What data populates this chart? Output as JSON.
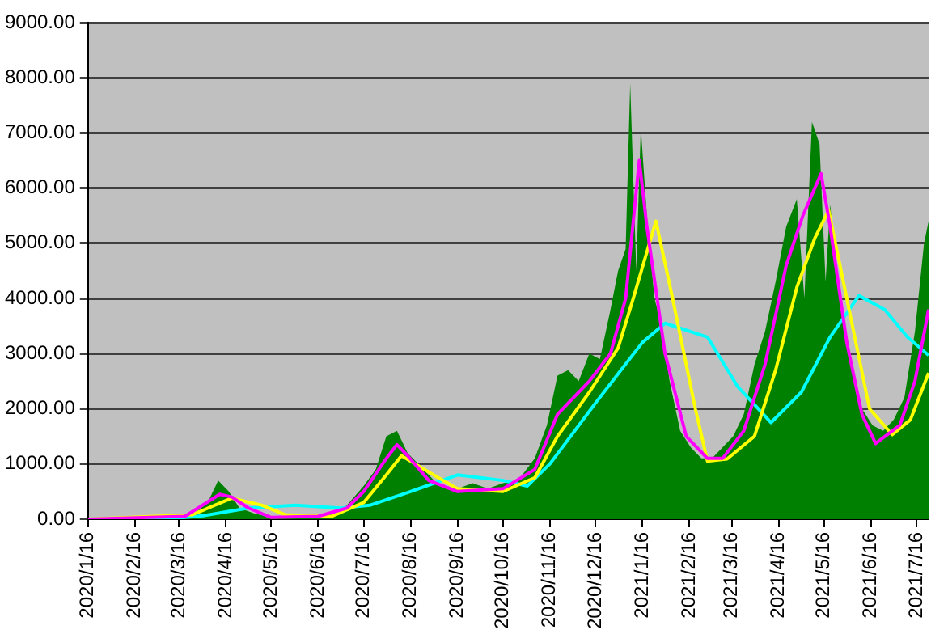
{
  "chart_data": {
    "type": "area",
    "legend": false,
    "grid": "y",
    "marker": "none",
    "xlim": [
      "2020-01-16",
      "2021-07-24"
    ],
    "xticks": [
      {
        "value": "2020-01-16",
        "label": "2020/1/16"
      },
      {
        "value": "2020-02-16",
        "label": "2020/2/16"
      },
      {
        "value": "2020-03-16",
        "label": "2020/3/16"
      },
      {
        "value": "2020-04-16",
        "label": "2020/4/16"
      },
      {
        "value": "2020-05-16",
        "label": "2020/5/16"
      },
      {
        "value": "2020-06-16",
        "label": "2020/6/16"
      },
      {
        "value": "2020-07-16",
        "label": "2020/7/16"
      },
      {
        "value": "2020-08-16",
        "label": "2020/8/16"
      },
      {
        "value": "2020-09-16",
        "label": "2020/9/16"
      },
      {
        "value": "2020-10-16",
        "label": "2020/10/16"
      },
      {
        "value": "2020-11-16",
        "label": "2020/11/16"
      },
      {
        "value": "2020-12-16",
        "label": "2020/12/16"
      },
      {
        "value": "2021-01-16",
        "label": "2021/1/16"
      },
      {
        "value": "2021-02-16",
        "label": "2021/2/16"
      },
      {
        "value": "2021-03-16",
        "label": "2021/3/16"
      },
      {
        "value": "2021-04-16",
        "label": "2021/4/16"
      },
      {
        "value": "2021-05-16",
        "label": "2021/5/16"
      },
      {
        "value": "2021-06-16",
        "label": "2021/6/16"
      },
      {
        "value": "2021-07-16",
        "label": "2021/7/16"
      }
    ],
    "ylim": [
      0,
      9000
    ],
    "yticks": [
      {
        "value": 0,
        "label": "0.00"
      },
      {
        "value": 1000,
        "label": "1000.00"
      },
      {
        "value": 2000,
        "label": "2000.00"
      },
      {
        "value": 3000,
        "label": "3000.00"
      },
      {
        "value": 4000,
        "label": "4000.00"
      },
      {
        "value": 5000,
        "label": "5000.00"
      },
      {
        "value": 6000,
        "label": "6000.00"
      },
      {
        "value": 7000,
        "label": "7000.00"
      },
      {
        "value": 8000,
        "label": "8000.00"
      },
      {
        "value": 9000,
        "label": "9000.00"
      }
    ],
    "series": [
      {
        "color": "#008000",
        "x": [
          "2020-01-16",
          "2020-02-16",
          "2020-03-01",
          "2020-03-16",
          "2020-03-26",
          "2020-04-04",
          "2020-04-11",
          "2020-04-18",
          "2020-04-25",
          "2020-05-05",
          "2020-05-16",
          "2020-06-01",
          "2020-06-16",
          "2020-06-28",
          "2020-07-05",
          "2020-07-16",
          "2020-07-24",
          "2020-07-31",
          "2020-08-07",
          "2020-08-14",
          "2020-08-21",
          "2020-08-28",
          "2020-09-04",
          "2020-09-16",
          "2020-09-26",
          "2020-10-06",
          "2020-10-16",
          "2020-10-26",
          "2020-11-06",
          "2020-11-14",
          "2020-11-21",
          "2020-11-28",
          "2020-12-05",
          "2020-12-12",
          "2020-12-19",
          "2020-12-26",
          "2020-12-31",
          "2021-01-05",
          "2021-01-08",
          "2021-01-12",
          "2021-01-15",
          "2021-01-19",
          "2021-01-24",
          "2021-01-29",
          "2021-02-03",
          "2021-02-10",
          "2021-02-17",
          "2021-02-24",
          "2021-03-03",
          "2021-03-10",
          "2021-03-17",
          "2021-03-24",
          "2021-03-31",
          "2021-04-07",
          "2021-04-14",
          "2021-04-21",
          "2021-04-28",
          "2021-05-03",
          "2021-05-08",
          "2021-05-13",
          "2021-05-17",
          "2021-05-20",
          "2021-05-27",
          "2021-06-03",
          "2021-06-10",
          "2021-06-17",
          "2021-06-24",
          "2021-07-01",
          "2021-07-08",
          "2021-07-15",
          "2021-07-21",
          "2021-07-24"
        ],
        "values": [
          0,
          10,
          20,
          20,
          100,
          300,
          700,
          500,
          200,
          100,
          30,
          40,
          60,
          100,
          250,
          600,
          900,
          1500,
          1600,
          1200,
          1000,
          800,
          600,
          550,
          650,
          550,
          650,
          700,
          1100,
          1700,
          2600,
          2700,
          2500,
          3000,
          2900,
          3800,
          4500,
          4900,
          7900,
          4500,
          7100,
          5500,
          4000,
          3500,
          2500,
          1600,
          1300,
          1100,
          1100,
          1300,
          1500,
          1900,
          2800,
          3400,
          4300,
          5300,
          5800,
          4000,
          7200,
          6800,
          4300,
          5700,
          3900,
          2900,
          2000,
          1700,
          1600,
          1800,
          2200,
          3400,
          5000,
          5400
        ]
      },
      {
        "type": "line",
        "color": "#ff00ff",
        "x": [
          "2020-01-16",
          "2020-03-20",
          "2020-04-12",
          "2020-04-20",
          "2020-05-01",
          "2020-05-16",
          "2020-06-16",
          "2020-07-05",
          "2020-07-16",
          "2020-07-31",
          "2020-08-07",
          "2020-08-14",
          "2020-08-28",
          "2020-09-16",
          "2020-10-16",
          "2020-11-06",
          "2020-11-21",
          "2020-12-12",
          "2020-12-26",
          "2021-01-05",
          "2021-01-14",
          "2021-01-19",
          "2021-01-31",
          "2021-02-14",
          "2021-02-28",
          "2021-03-10",
          "2021-03-24",
          "2021-04-07",
          "2021-04-21",
          "2021-05-02",
          "2021-05-14",
          "2021-05-20",
          "2021-05-31",
          "2021-06-10",
          "2021-06-19",
          "2021-07-05",
          "2021-07-15",
          "2021-07-24"
        ],
        "values": [
          0,
          50,
          450,
          400,
          200,
          30,
          50,
          200,
          500,
          1100,
          1350,
          1150,
          700,
          500,
          550,
          900,
          1900,
          2500,
          3000,
          4000,
          6500,
          5300,
          3000,
          1500,
          1100,
          1100,
          1600,
          2800,
          4600,
          5500,
          6260,
          5300,
          3200,
          1900,
          1370,
          1700,
          2500,
          3800
        ]
      },
      {
        "type": "line",
        "color": "#ffff00",
        "x": [
          "2020-01-16",
          "2020-03-25",
          "2020-04-20",
          "2020-05-10",
          "2020-05-25",
          "2020-06-25",
          "2020-07-16",
          "2020-07-31",
          "2020-08-10",
          "2020-08-25",
          "2020-09-16",
          "2020-10-16",
          "2020-11-06",
          "2020-11-21",
          "2020-12-12",
          "2020-12-31",
          "2021-01-10",
          "2021-01-25",
          "2021-02-05",
          "2021-02-20",
          "2021-02-28",
          "2021-03-13",
          "2021-03-31",
          "2021-04-14",
          "2021-04-28",
          "2021-05-10",
          "2021-05-19",
          "2021-05-31",
          "2021-06-15",
          "2021-06-30",
          "2021-07-12",
          "2021-07-24"
        ],
        "values": [
          0,
          80,
          380,
          250,
          80,
          50,
          300,
          800,
          1150,
          900,
          550,
          500,
          750,
          1500,
          2300,
          3100,
          4000,
          5400,
          4000,
          2000,
          1050,
          1090,
          1500,
          2700,
          4200,
          5100,
          5600,
          4000,
          2000,
          1530,
          1800,
          2650
        ]
      },
      {
        "type": "line",
        "color": "#00ffff",
        "x": [
          "2020-01-16",
          "2020-03-16",
          "2020-04-01",
          "2020-05-01",
          "2020-06-01",
          "2020-07-01",
          "2020-07-20",
          "2020-08-16",
          "2020-09-16",
          "2020-10-16",
          "2020-11-01",
          "2020-11-16",
          "2020-12-16",
          "2021-01-16",
          "2021-01-31",
          "2021-02-28",
          "2021-03-20",
          "2021-04-11",
          "2021-05-01",
          "2021-05-20",
          "2021-06-08",
          "2021-06-25",
          "2021-07-10",
          "2021-07-24"
        ],
        "values": [
          0,
          20,
          60,
          200,
          250,
          200,
          250,
          500,
          800,
          700,
          600,
          1000,
          2100,
          3200,
          3550,
          3300,
          2400,
          1750,
          2300,
          3300,
          4050,
          3800,
          3300,
          2970
        ]
      }
    ]
  }
}
